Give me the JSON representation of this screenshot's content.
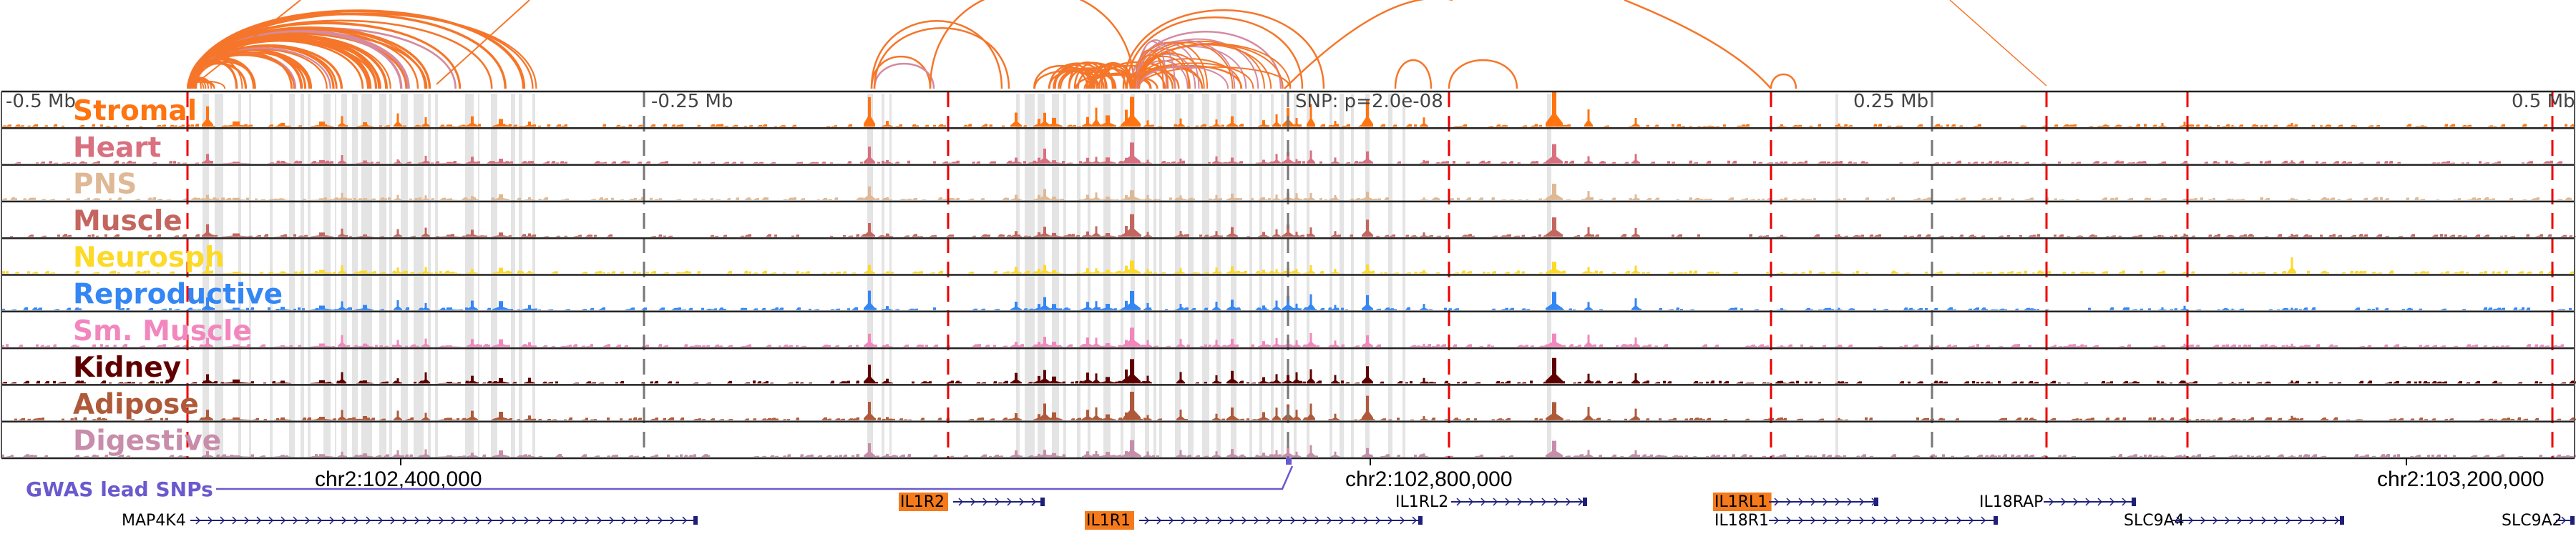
{
  "figure": {
    "tracks": [
      {
        "name": "Stromal",
        "color": "#ff7410"
      },
      {
        "name": "Heart",
        "color": "#d8707f"
      },
      {
        "name": "PNS",
        "color": "#dfb896"
      },
      {
        "name": "Muscle",
        "color": "#c46660"
      },
      {
        "name": "Neurosph",
        "color": "#fdd928"
      },
      {
        "name": "Reproductive",
        "color": "#3486f4"
      },
      {
        "name": "Sm. Muscle",
        "color": "#f287be"
      },
      {
        "name": "Kidney",
        "color": "#5f0000"
      },
      {
        "name": "Adipose",
        "color": "#ae5a3a"
      },
      {
        "name": "Digestive",
        "color": "#c78daa"
      }
    ],
    "scale_labels": [
      "-0.5 Mb",
      "-0.25 Mb",
      "0.25 Mb",
      "0.5 Mb"
    ],
    "snp_annotation": "SNP: p=2.0e-08",
    "coordinates": [
      "chr2:102,400,000",
      "chr2:102,800,000",
      "chr2:103,200,000"
    ],
    "gwas": {
      "label": "GWAS lead SNPs",
      "color": "#6a5acd"
    },
    "genes": [
      {
        "name": "MAP4K4",
        "highlighted": false
      },
      {
        "name": "IL1R2",
        "highlighted": true
      },
      {
        "name": "IL1R1",
        "highlighted": true
      },
      {
        "name": "IL1RL2",
        "highlighted": false
      },
      {
        "name": "IL1RL1",
        "highlighted": true
      },
      {
        "name": "IL18R1",
        "highlighted": false
      },
      {
        "name": "IL18RAP",
        "highlighted": false
      },
      {
        "name": "SLC9A4",
        "highlighted": false
      },
      {
        "name": "SLC9A2",
        "highlighted": false
      }
    ],
    "colors": {
      "arc": "#f5762a",
      "arc_alt": "#d58aa0",
      "gene_line": "#1f1f7a",
      "gene_highlight": "#f57a1c",
      "dashed_red": "#ee0000",
      "dashed_gray": "#777777",
      "shade": "#e4e4e4"
    }
  }
}
